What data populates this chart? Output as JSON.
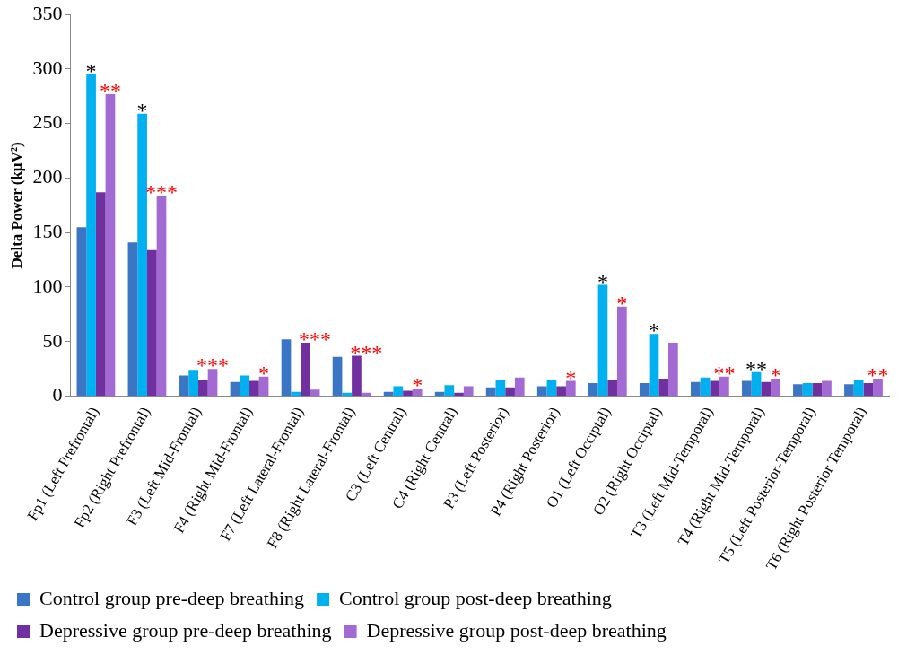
{
  "chart_data": {
    "type": "bar",
    "ylabel": "Delta Power (kµV²)",
    "categories": [
      "Fp1 (Left Prefrontal)",
      "Fp2 (Right Prefrontal)",
      "F3 (Left Mid-Frontal)",
      "F4 (Right Mid-Frontal)",
      "F7 (Left Lateral-Frontal)",
      "F8 (Right Lateral-Frontal)",
      "C3 (Left Central)",
      "C4 (Right Central)",
      "P3 (Left Posterior)",
      "P4 (Right Posterior)",
      "O1 (Left Occiptal)",
      "O2 (Right Occiptal)",
      "T3 (Left Mid-Temporal)",
      "T4 (Right Mid-Temporal)",
      "T5 (Left Posterior-Temporal)",
      "T6 (Right Posterior Temporal)"
    ],
    "series": [
      {
        "name": "Control group pre-deep breathing",
        "color": "#3a76c4",
        "values": [
          155,
          141,
          19,
          13,
          52,
          36,
          4,
          4,
          8,
          9,
          12,
          12,
          13,
          14,
          11,
          11
        ]
      },
      {
        "name": "Control group post-deep breathing",
        "color": "#00b0f0",
        "values": [
          295,
          259,
          24,
          19,
          4,
          3,
          9,
          10,
          15,
          15,
          102,
          57,
          17,
          22,
          12,
          15
        ]
      },
      {
        "name": "Depressive group pre-deep breathing",
        "color": "#7030a0",
        "values": [
          187,
          134,
          15,
          14,
          49,
          37,
          5,
          3,
          8,
          9,
          15,
          16,
          14,
          13,
          12,
          12
        ]
      },
      {
        "name": "Depressive group post-deep breathing",
        "color": "#a26ad2",
        "values": [
          277,
          184,
          25,
          18,
          6,
          3,
          7,
          9,
          17,
          14,
          82,
          49,
          18,
          16,
          14,
          16
        ]
      }
    ],
    "ylim": [
      0,
      350
    ],
    "yticks": [
      0,
      50,
      100,
      150,
      200,
      250,
      300,
      350
    ],
    "grid": false,
    "legend": "bottom",
    "annotations": [
      {
        "text": "*",
        "x": "Fp1 (Left Prefrontal)",
        "y": 295
      },
      {
        "text": "**",
        "x": "Fp1 (Left Prefrontal)",
        "y": 277
      },
      {
        "text": "*",
        "x": "Fp2 (Right Prefrontal)",
        "y": 259
      },
      {
        "text": "***",
        "x": "Fp2 (Right Prefrontal)",
        "y": 184
      },
      {
        "text": "***",
        "x": "F3 (Left Mid-Frontal)",
        "y": 25
      },
      {
        "text": "*",
        "x": "F4 (Right Mid-Frontal)",
        "y": 18
      },
      {
        "text": "***",
        "x": "F7 (Left Lateral-Frontal)",
        "y": 6
      },
      {
        "text": "***",
        "x": "F8 (Right Lateral-Frontal)",
        "y": 3
      },
      {
        "text": "*",
        "x": "C3 (Left Central)",
        "y": 7
      },
      {
        "text": "*",
        "x": "P4 (Right Posterior)",
        "y": 14
      },
      {
        "text": "*",
        "x": "O1 (Left Occiptal)",
        "y": 102
      },
      {
        "text": "*",
        "x": "O1 (Left Occiptal)",
        "y": 82
      },
      {
        "text": "*",
        "x": "O2 (Right Occiptal)",
        "y": 57
      },
      {
        "text": "**",
        "x": "T3 (Left Mid-Temporal)",
        "y": 18
      },
      {
        "text": "**",
        "x": "T4 (Right Mid-Temporal)",
        "y": 22
      },
      {
        "text": "*",
        "x": "T4 (Right Mid-Temporal)",
        "y": 16
      },
      {
        "text": "**",
        "x": "T6 (Right Posterior Temporal)",
        "y": 16
      }
    ]
  }
}
